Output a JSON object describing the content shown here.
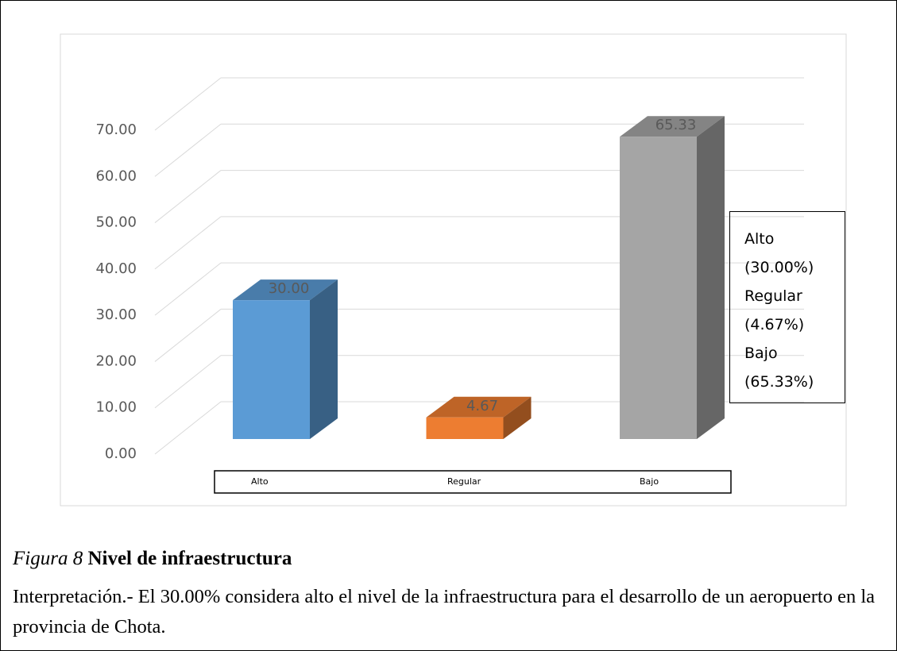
{
  "chart_data": {
    "type": "bar3d",
    "categories": [
      "Alto",
      "Regular",
      "Bajo"
    ],
    "values": [
      30,
      4.67,
      65.33
    ],
    "value_labels": [
      "30.00",
      "4.67",
      "65.33"
    ],
    "colors": [
      "#5b9bd5",
      "#ed7d31",
      "#a5a5a5"
    ],
    "ylim": [
      0,
      70
    ],
    "yticks": [
      {
        "value": 0,
        "label": "0.00"
      },
      {
        "value": 10,
        "label": "10.00"
      },
      {
        "value": 20,
        "label": "20.00"
      },
      {
        "value": 30,
        "label": "30.00"
      },
      {
        "value": 40,
        "label": "40.00"
      },
      {
        "value": 50,
        "label": "50.00"
      },
      {
        "value": 60,
        "label": "60.00"
      },
      {
        "value": 70,
        "label": "70.00"
      }
    ],
    "grid": true,
    "legend_labels": [
      "Alto (30.00%)",
      "Regular (4.67%)",
      "Bajo (65.33%)"
    ]
  },
  "caption": {
    "label": "Figura 8",
    "title": "Nivel de infraestructura"
  },
  "interpretation": "Interpretación.- El 30.00% considera alto el nivel de la infraestructura para el desarrollo de un aeropuerto en la provincia de Chota."
}
